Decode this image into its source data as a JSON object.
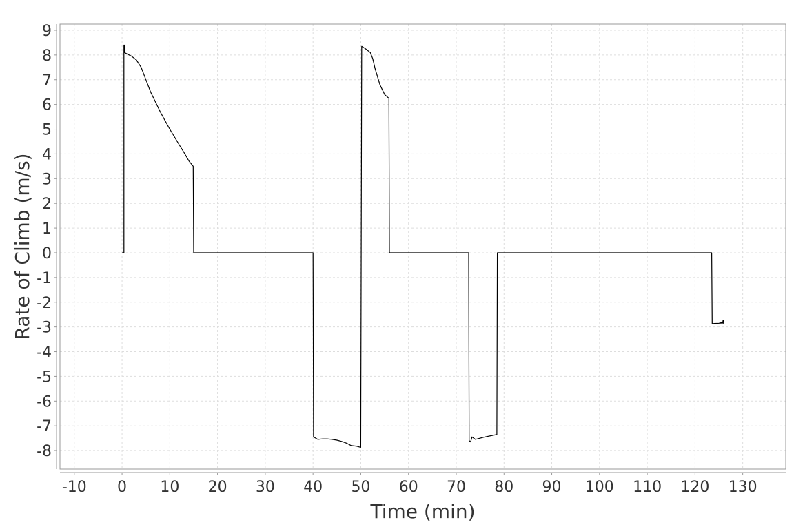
{
  "chart_data": {
    "type": "line",
    "title": "",
    "xlabel": "Time (min)",
    "ylabel": "Rate of Climb (m/s)",
    "xlim": [
      -13,
      139
    ],
    "ylim": [
      -8.75,
      9.25
    ],
    "x_ticks": [
      -10,
      0,
      10,
      20,
      30,
      40,
      50,
      60,
      70,
      80,
      90,
      100,
      110,
      120,
      130
    ],
    "y_ticks": [
      9,
      8,
      7,
      6,
      5,
      4,
      3,
      2,
      1,
      0,
      -1,
      -2,
      -3,
      -4,
      -5,
      -6,
      -7,
      -8
    ],
    "grid": true,
    "grid_style": "dashed",
    "line_color": "#000000",
    "series": [
      {
        "x": [
          0.0,
          0.4,
          0.4,
          0.5,
          0.5,
          2.0,
          3.0,
          4.0,
          5.0,
          6.0,
          7.0,
          8.0,
          9.0,
          10.0,
          11.0,
          12.0,
          13.0,
          14.0,
          14.9,
          15.0,
          20,
          30,
          40.0,
          40.1,
          41.0,
          42.0,
          43.0,
          44.0,
          45.0,
          46.0,
          47.0,
          48.0,
          49.0,
          50.0,
          50.2,
          51.0,
          52.0,
          52.5,
          53.0,
          54.0,
          55.0,
          55.9,
          56.0,
          60,
          70,
          72.6,
          72.7,
          73.0,
          73.3,
          74.0,
          76.0,
          78.0,
          78.5,
          78.6,
          90,
          100,
          110,
          120,
          123.5,
          123.6,
          124.0,
          125.0,
          125.5,
          125.8,
          125.9,
          126.0,
          126.0,
          125.8,
          125.0,
          124.0,
          123.6
        ],
        "y": [
          0.0,
          0.0,
          8.4,
          8.4,
          8.1,
          7.95,
          7.8,
          7.5,
          7.0,
          6.5,
          6.1,
          5.7,
          5.35,
          5.0,
          4.68,
          4.36,
          4.05,
          3.72,
          3.5,
          0.0,
          0.0,
          0.0,
          0.0,
          -7.45,
          -7.55,
          -7.53,
          -7.53,
          -7.55,
          -7.58,
          -7.63,
          -7.7,
          -7.8,
          -7.82,
          -7.87,
          8.35,
          8.25,
          8.1,
          7.85,
          7.45,
          6.8,
          6.4,
          6.25,
          0.0,
          0.0,
          0.0,
          0.0,
          -7.6,
          -7.65,
          -7.45,
          -7.55,
          -7.45,
          -7.37,
          -7.35,
          0.0,
          0.0,
          0.0,
          0.0,
          0.0,
          0.0,
          -2.88,
          -2.87,
          -2.85,
          -2.83,
          -2.82,
          -2.72,
          -2.72,
          -2.85,
          -2.84,
          -2.85,
          -2.86,
          -2.88
        ]
      }
    ]
  }
}
